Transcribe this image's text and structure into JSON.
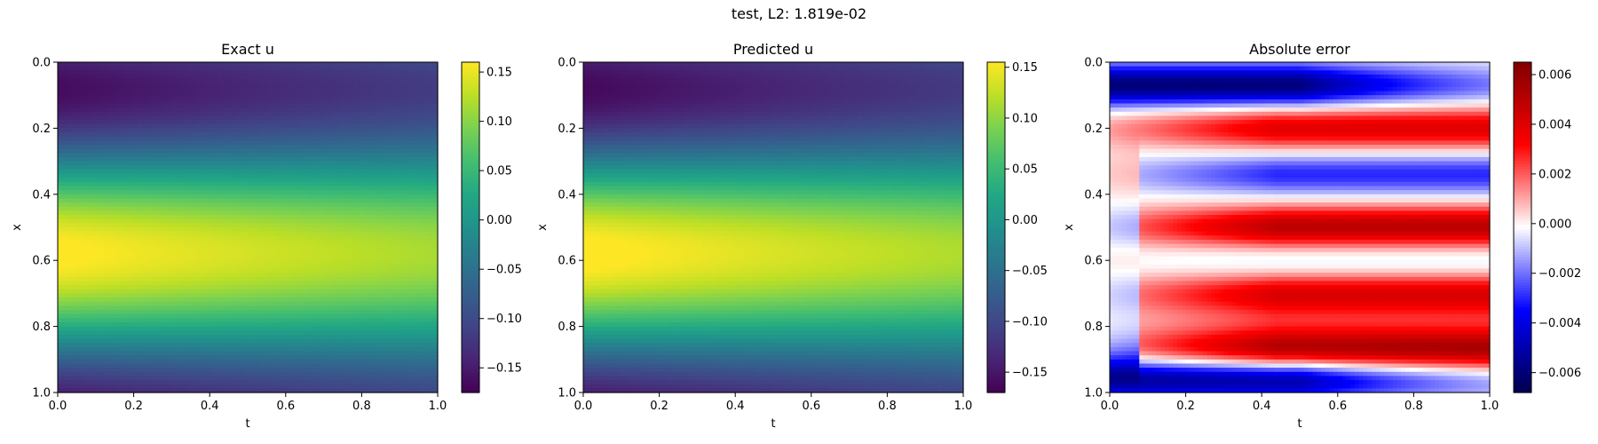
{
  "figure": {
    "suptitle": "test, L2: 1.819e-02"
  },
  "chart_data": [
    {
      "type": "heatmap",
      "title": "Exact u",
      "xlabel": "t",
      "ylabel": "x",
      "xlim": [
        0.0,
        1.0
      ],
      "ylim": [
        1.0,
        0.0
      ],
      "xticks": [
        "0.0",
        "0.2",
        "0.4",
        "0.6",
        "0.8",
        "1.0"
      ],
      "yticks": [
        "0.0",
        "0.2",
        "0.4",
        "0.6",
        "0.8",
        "1.0"
      ],
      "colormap": "viridis",
      "colorbar": {
        "vmin": -0.175,
        "vmax": 0.16,
        "ticks": [
          0.15,
          0.1,
          0.05,
          0.0,
          -0.05,
          -0.1,
          -0.15
        ],
        "tick_labels": [
          "0.15",
          "0.10",
          "0.05",
          "0.00",
          "−0.05",
          "−0.10",
          "−0.15"
        ]
      },
      "field_description": "u(t,x) ~ 0.17*sin(2*pi*x - phase), min about -0.17 near x=0.08, max about 0.16 near x=0.68, slowly damping as t increases"
    },
    {
      "type": "heatmap",
      "title": "Predicted u",
      "xlabel": "t",
      "ylabel": "x",
      "xlim": [
        0.0,
        1.0
      ],
      "ylim": [
        1.0,
        0.0
      ],
      "xticks": [
        "0.0",
        "0.2",
        "0.4",
        "0.6",
        "0.8",
        "1.0"
      ],
      "yticks": [
        "0.0",
        "0.2",
        "0.4",
        "0.6",
        "0.8",
        "1.0"
      ],
      "colormap": "viridis",
      "colorbar": {
        "vmin": -0.17,
        "vmax": 0.155,
        "ticks": [
          0.15,
          0.1,
          0.05,
          0.0,
          -0.05,
          -0.1,
          -0.15
        ],
        "tick_labels": [
          "0.15",
          "0.10",
          "0.05",
          "0.00",
          "−0.05",
          "−0.10",
          "−0.15"
        ]
      }
    },
    {
      "type": "heatmap",
      "title": "Absolute error",
      "xlabel": "t",
      "ylabel": "x",
      "xlim": [
        0.0,
        1.0
      ],
      "ylim": [
        1.0,
        0.0
      ],
      "xticks": [
        "0.0",
        "0.2",
        "0.4",
        "0.6",
        "0.8",
        "1.0"
      ],
      "yticks": [
        "0.0",
        "0.2",
        "0.4",
        "0.6",
        "0.8",
        "1.0"
      ],
      "colormap": "seismic",
      "colorbar": {
        "vmin": -0.0068,
        "vmax": 0.0065,
        "ticks": [
          0.006,
          0.004,
          0.002,
          0.0,
          -0.002,
          -0.004,
          -0.006
        ],
        "tick_labels": [
          "0.006",
          "0.004",
          "0.002",
          "0.000",
          "−0.002",
          "−0.004",
          "−0.006"
        ]
      },
      "error_bands": [
        {
          "x_center": 0.07,
          "value": -0.006
        },
        {
          "x_center": 0.2,
          "value": 0.004
        },
        {
          "x_center": 0.34,
          "value": -0.003
        },
        {
          "x_center": 0.5,
          "value": 0.005
        },
        {
          "x_center": 0.6,
          "value": -0.001
        },
        {
          "x_center": 0.7,
          "value": 0.004
        },
        {
          "x_center": 0.78,
          "value": 0.001
        },
        {
          "x_center": 0.87,
          "value": 0.0055
        },
        {
          "x_center": 0.96,
          "value": -0.0055
        }
      ]
    }
  ]
}
